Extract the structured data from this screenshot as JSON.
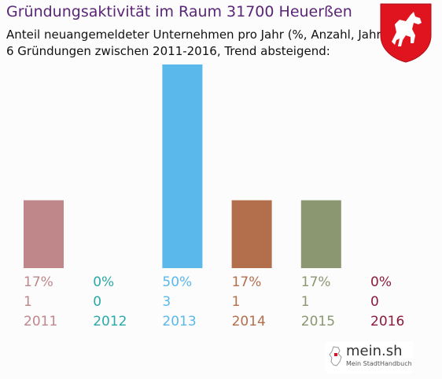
{
  "header": {
    "title": "Gründungsaktivität im Raum 31700 Heuerßen",
    "subtitle1": "Anteil neuangemeldeter Unternehmen pro Jahr (%, Anzahl, Jahr)",
    "subtitle2": "6 Gründungen zwischen 2011-2016, Trend absteigend:"
  },
  "crest": {
    "icon": "lower-saxony-horse-crest-icon",
    "color": "#e0141e"
  },
  "logo": {
    "name": "mein.sh",
    "tagline": "Mein StadtHandbuch"
  },
  "chart_data": {
    "type": "bar",
    "categories": [
      "2011",
      "2012",
      "2013",
      "2014",
      "2015",
      "2016"
    ],
    "percent_labels": [
      "17%",
      "0%",
      "50%",
      "17%",
      "17%",
      "0%"
    ],
    "values": [
      1,
      0,
      3,
      1,
      1,
      0
    ],
    "colors": [
      "#c0878b",
      "#2aa9a8",
      "#5bb8ea",
      "#b36e4b",
      "#8a9770",
      "#8b1a3c"
    ],
    "ylim": [
      0,
      3
    ]
  }
}
